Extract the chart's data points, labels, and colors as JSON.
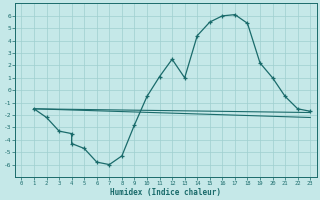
{
  "xlabel": "Humidex (Indice chaleur)",
  "bg_color": "#c5e8e8",
  "grid_color": "#9fcfcf",
  "line_color": "#1a6b6b",
  "xlim": [
    -0.5,
    23.5
  ],
  "ylim": [
    -7.0,
    7.0
  ],
  "yticks": [
    -6,
    -5,
    -4,
    -3,
    -2,
    -1,
    0,
    1,
    2,
    3,
    4,
    5,
    6
  ],
  "xticks": [
    0,
    1,
    2,
    3,
    4,
    5,
    6,
    7,
    8,
    9,
    10,
    11,
    12,
    13,
    14,
    15,
    16,
    17,
    18,
    19,
    20,
    21,
    22,
    23
  ],
  "curve_x": [
    1,
    2,
    3,
    4,
    4,
    5,
    6,
    7,
    8,
    9,
    10,
    11,
    12,
    13,
    14,
    15,
    16,
    17,
    18,
    19,
    20,
    21,
    22,
    23
  ],
  "curve_y": [
    -1.5,
    -2.2,
    -3.3,
    -3.5,
    -4.3,
    -4.7,
    -5.8,
    -6.0,
    -5.3,
    -2.8,
    -0.5,
    1.1,
    2.5,
    1.0,
    4.4,
    5.5,
    6.0,
    6.1,
    5.4,
    2.2,
    1.0,
    -0.5,
    -1.5,
    -1.7
  ],
  "line2_x": [
    1,
    23
  ],
  "line2_y": [
    -1.5,
    -1.8
  ],
  "line3_x": [
    1,
    23
  ],
  "line3_y": [
    -1.5,
    -2.2
  ]
}
